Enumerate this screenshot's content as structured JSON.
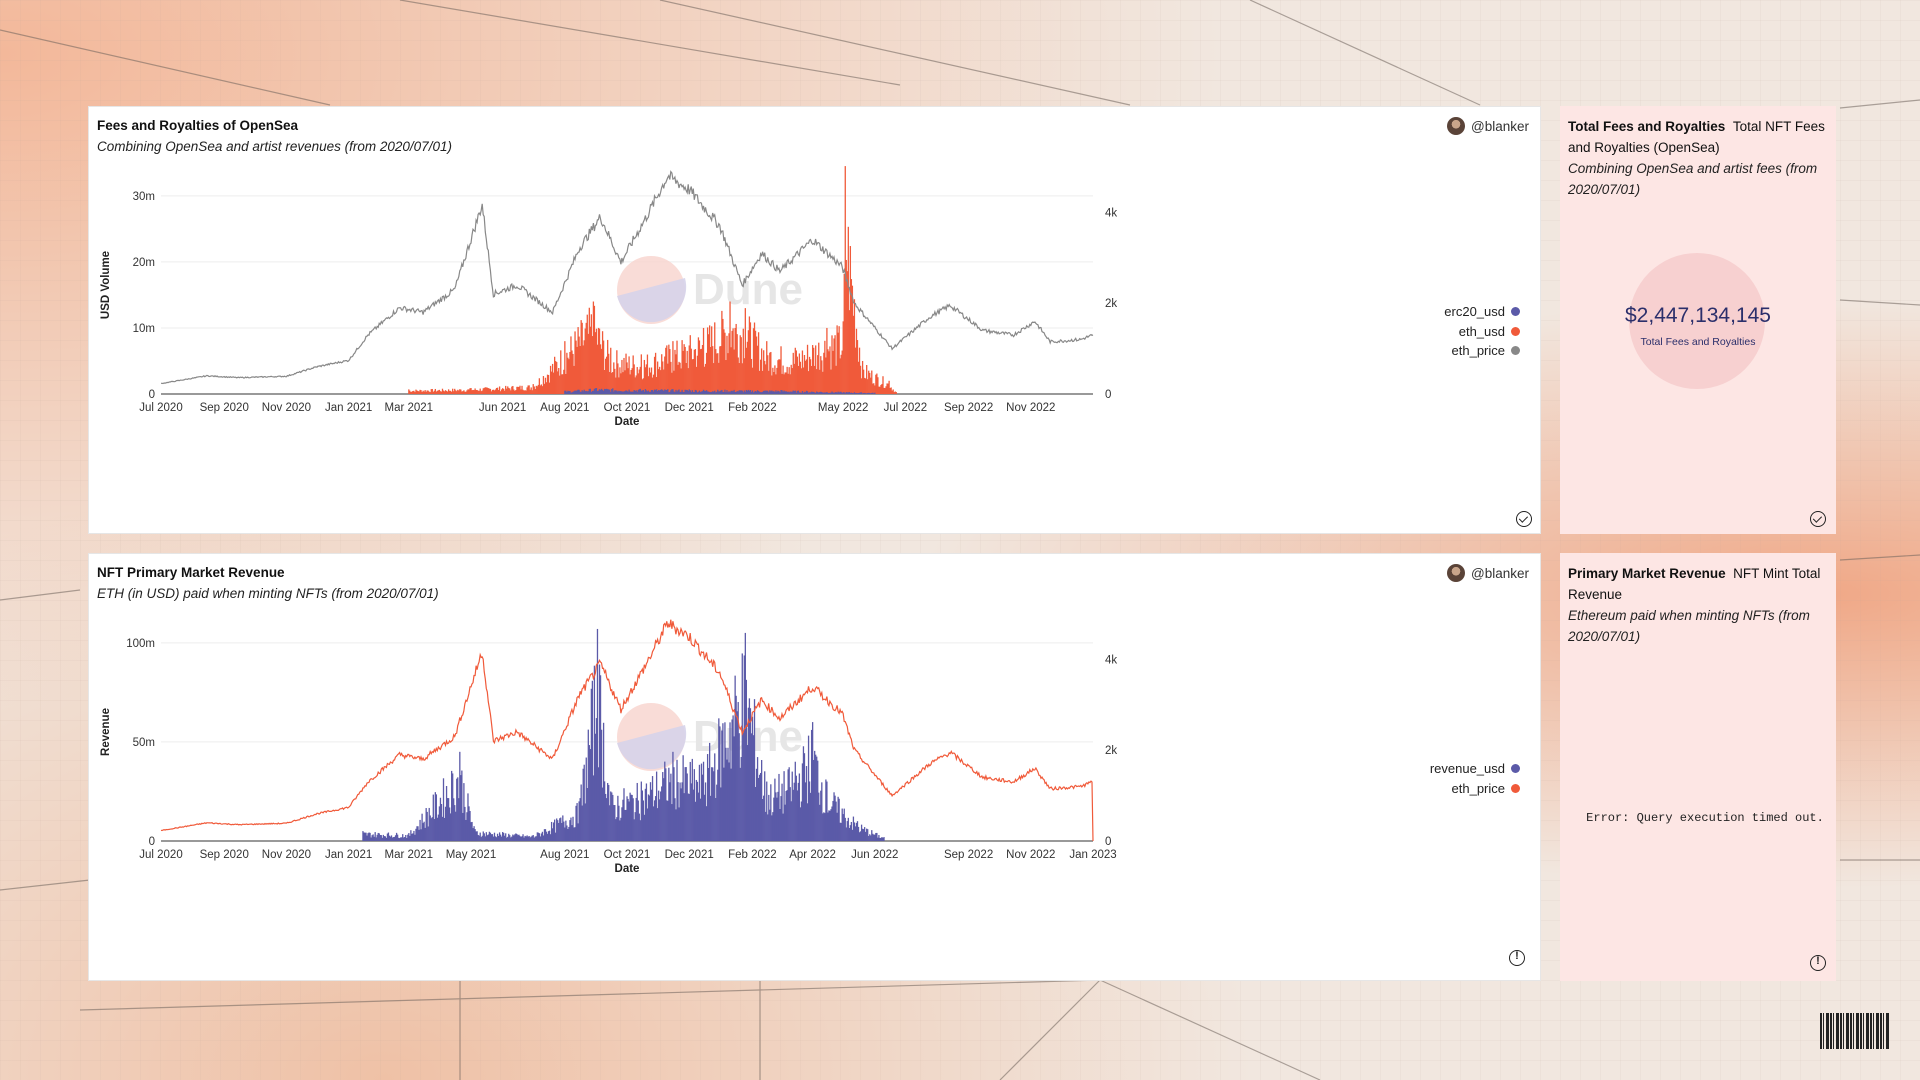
{
  "colors": {
    "orange": "#f05a3a",
    "indigo": "#5b5aa8",
    "gray": "#888888",
    "panel_pink": "#fde6e4"
  },
  "panel1": {
    "title": "Fees and Royalties of OpenSea",
    "subtitle": "Combining OpenSea and artist revenues (from 2020/07/01)",
    "author": "@blanker",
    "status_icon": "check-circle-icon",
    "watermark": "Dune"
  },
  "panel2": {
    "title": "NFT Primary Market Revenue",
    "subtitle": "ETH (in USD) paid when minting NFTs (from 2020/07/01)",
    "author": "@blanker",
    "status_icon": "alert-circle-icon",
    "watermark": "Dune"
  },
  "side1": {
    "title": "Total Fees and Royalties",
    "name": "Total NFT Fees and Royalties (OpenSea)",
    "subtitle": "Combining OpenSea and artist fees (from 2020/07/01)",
    "counter_value": "$2,447,134,145",
    "counter_label": "Total Fees and Royalties"
  },
  "side2": {
    "title": "Primary Market Revenue",
    "name": "NFT Mint Total Revenue",
    "subtitle": "Ethereum paid when minting NFTs (from 2020/07/01)",
    "error": "Error: Query execution timed out."
  },
  "chart_data": [
    {
      "type": "bar+line",
      "x_range": [
        "2020-07-01",
        "2023-01-01"
      ],
      "xlabel": "Date",
      "ylabel": "USD Volume",
      "x_ticks": [
        "Jul 2020",
        "Sep 2020",
        "Nov 2020",
        "Jan 2021",
        "Mar 2021",
        "Jun 2021",
        "Aug 2021",
        "Oct 2021",
        "Dec 2021",
        "Feb 2022",
        "May 2022",
        "Jul 2022",
        "Sep 2022",
        "Nov 2022"
      ],
      "y_ticks": [
        "0",
        "10m",
        "20m",
        "30m"
      ],
      "ylim": [
        0,
        33000000
      ],
      "y2_ticks": [
        "0",
        "2k",
        "4k"
      ],
      "y2lim": [
        0,
        4800
      ],
      "legend": [
        "erc20_usd",
        "eth_usd",
        "eth_price"
      ],
      "legend_placement": "right",
      "series": [
        {
          "name": "eth_price",
          "type": "line",
          "axis": "right",
          "points": [
            [
              "2020-07-01",
              230
            ],
            [
              "2020-08-15",
              400
            ],
            [
              "2020-09-15",
              360
            ],
            [
              "2020-11-01",
              390
            ],
            [
              "2020-12-01",
              600
            ],
            [
              "2021-01-01",
              740
            ],
            [
              "2021-01-20",
              1300
            ],
            [
              "2021-02-20",
              1900
            ],
            [
              "2021-03-15",
              1800
            ],
            [
              "2021-04-15",
              2300
            ],
            [
              "2021-05-12",
              4170
            ],
            [
              "2021-05-23",
              2200
            ],
            [
              "2021-06-15",
              2400
            ],
            [
              "2021-07-20",
              1800
            ],
            [
              "2021-08-15",
              3200
            ],
            [
              "2021-09-05",
              3900
            ],
            [
              "2021-09-25",
              2900
            ],
            [
              "2021-10-20",
              3900
            ],
            [
              "2021-11-10",
              4800
            ],
            [
              "2021-12-01",
              4500
            ],
            [
              "2021-12-31",
              3700
            ],
            [
              "2022-01-22",
              2400
            ],
            [
              "2022-02-10",
              3100
            ],
            [
              "2022-02-28",
              2700
            ],
            [
              "2022-04-01",
              3400
            ],
            [
              "2022-04-30",
              2800
            ],
            [
              "2022-05-12",
              2000
            ],
            [
              "2022-06-18",
              1000
            ],
            [
              "2022-07-25",
              1700
            ],
            [
              "2022-08-14",
              1950
            ],
            [
              "2022-09-15",
              1400
            ],
            [
              "2022-10-15",
              1300
            ],
            [
              "2022-11-05",
              1600
            ],
            [
              "2022-11-20",
              1150
            ],
            [
              "2022-12-20",
              1200
            ],
            [
              "2023-01-01",
              1300
            ]
          ]
        },
        {
          "name": "eth_usd",
          "type": "bar",
          "axis": "left",
          "color": "#f05a3a",
          "points": [
            [
              "2021-03-01",
              700000
            ],
            [
              "2021-05-01",
              900000
            ],
            [
              "2021-07-01",
              1500000
            ],
            [
              "2021-08-01",
              8000000
            ],
            [
              "2021-08-29",
              14000000
            ],
            [
              "2021-09-15",
              7000000
            ],
            [
              "2021-10-15",
              6000000
            ],
            [
              "2021-11-15",
              8000000
            ],
            [
              "2021-12-15",
              10000000
            ],
            [
              "2022-01-10",
              14000000
            ],
            [
              "2022-01-25",
              13000000
            ],
            [
              "2022-02-15",
              8000000
            ],
            [
              "2022-03-15",
              7000000
            ],
            [
              "2022-04-15",
              10000000
            ],
            [
              "2022-05-01",
              11000000
            ],
            [
              "2022-05-03",
              34500000
            ],
            [
              "2022-05-20",
              5000000
            ],
            [
              "2022-06-15",
              2000000
            ],
            [
              "2022-06-22",
              300000
            ]
          ]
        },
        {
          "name": "erc20_usd",
          "type": "bar",
          "axis": "left",
          "color": "#5b5aa8",
          "points": [
            [
              "2021-08-01",
              500000
            ],
            [
              "2021-09-01",
              900000
            ],
            [
              "2021-12-01",
              700000
            ],
            [
              "2022-03-01",
              600000
            ],
            [
              "2022-06-01",
              200000
            ]
          ]
        }
      ]
    },
    {
      "type": "bar+line",
      "x_range": [
        "2020-07-01",
        "2023-01-01"
      ],
      "xlabel": "Date",
      "ylabel": "Revenue",
      "x_ticks": [
        "Jul 2020",
        "Sep 2020",
        "Nov 2020",
        "Jan 2021",
        "Mar 2021",
        "May 2021",
        "Aug 2021",
        "Oct 2021",
        "Dec 2021",
        "Feb 2022",
        "Apr 2022",
        "Jun 2022",
        "Sep 2022",
        "Nov 2022",
        "Jan 2023"
      ],
      "y_ticks": [
        "0",
        "50m",
        "100m"
      ],
      "ylim": [
        0,
        110000000
      ],
      "y2_ticks": [
        "0",
        "2k",
        "4k"
      ],
      "y2lim": [
        0,
        4800
      ],
      "legend": [
        "revenue_usd",
        "eth_price"
      ],
      "legend_placement": "right",
      "series": [
        {
          "name": "eth_price",
          "type": "line",
          "axis": "right",
          "color": "#f05a3a",
          "points": [
            [
              "2020-07-01",
              230
            ],
            [
              "2020-08-15",
              400
            ],
            [
              "2020-09-15",
              360
            ],
            [
              "2020-11-01",
              390
            ],
            [
              "2020-12-01",
              600
            ],
            [
              "2021-01-01",
              740
            ],
            [
              "2021-01-20",
              1300
            ],
            [
              "2021-02-20",
              1900
            ],
            [
              "2021-03-15",
              1800
            ],
            [
              "2021-04-15",
              2300
            ],
            [
              "2021-05-12",
              4170
            ],
            [
              "2021-05-23",
              2200
            ],
            [
              "2021-06-15",
              2400
            ],
            [
              "2021-07-20",
              1800
            ],
            [
              "2021-08-15",
              3200
            ],
            [
              "2021-09-05",
              3900
            ],
            [
              "2021-09-25",
              2900
            ],
            [
              "2021-10-20",
              3900
            ],
            [
              "2021-11-10",
              4800
            ],
            [
              "2021-12-01",
              4500
            ],
            [
              "2021-12-31",
              3700
            ],
            [
              "2022-01-22",
              2400
            ],
            [
              "2022-02-10",
              3100
            ],
            [
              "2022-02-28",
              2700
            ],
            [
              "2022-04-01",
              3400
            ],
            [
              "2022-04-30",
              2800
            ],
            [
              "2022-05-12",
              2000
            ],
            [
              "2022-06-18",
              1000
            ],
            [
              "2022-07-25",
              1700
            ],
            [
              "2022-08-14",
              1950
            ],
            [
              "2022-09-15",
              1400
            ],
            [
              "2022-10-15",
              1300
            ],
            [
              "2022-11-05",
              1600
            ],
            [
              "2022-11-20",
              1150
            ],
            [
              "2022-12-20",
              1200
            ],
            [
              "2022-12-31",
              1300
            ],
            [
              "2023-01-01",
              0
            ]
          ]
        },
        {
          "name": "revenue_usd",
          "type": "bar",
          "axis": "left",
          "color": "#5b5aa8",
          "points": [
            [
              "2021-01-15",
              5000000
            ],
            [
              "2021-03-01",
              4000000
            ],
            [
              "2021-04-20",
              45000000
            ],
            [
              "2021-05-05",
              6000000
            ],
            [
              "2021-07-01",
              3000000
            ],
            [
              "2021-08-15",
              20000000
            ],
            [
              "2021-09-02",
              107000000
            ],
            [
              "2021-09-15",
              25000000
            ],
            [
              "2021-10-15",
              30000000
            ],
            [
              "2021-11-15",
              45000000
            ],
            [
              "2021-12-15",
              40000000
            ],
            [
              "2022-01-25",
              105000000
            ],
            [
              "2022-02-15",
              30000000
            ],
            [
              "2022-03-15",
              40000000
            ],
            [
              "2022-04-01",
              60000000
            ],
            [
              "2022-04-15",
              30000000
            ],
            [
              "2022-05-15",
              10000000
            ],
            [
              "2022-06-10",
              2000000
            ]
          ]
        }
      ]
    }
  ]
}
